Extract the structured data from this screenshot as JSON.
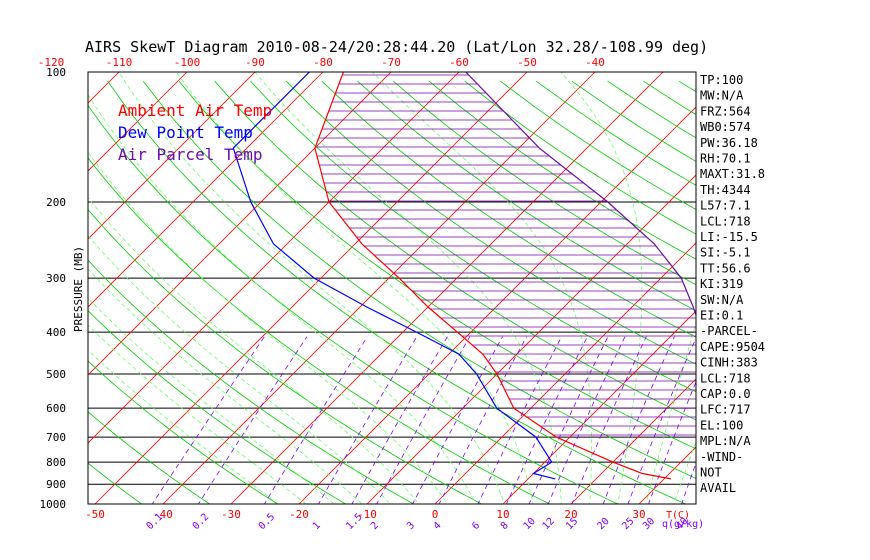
{
  "chart_data": {
    "type": "line",
    "title": "AIRS SkewT Diagram 2010-08-24/20:28:44.20 (Lat/Lon 32.28/-108.99 deg)",
    "ylabel": "PRESSURE (MB)",
    "xlabel": "T(C)",
    "mixing_unit": "q(g/kg)",
    "y_scale": "log",
    "ylim": [
      1000,
      100
    ],
    "xlim_bottom": [
      -50,
      30
    ],
    "y_ticks": [
      100,
      200,
      300,
      400,
      500,
      600,
      700,
      800,
      900,
      1000
    ],
    "x_ticks_bottom": [
      -50,
      -40,
      -30,
      -20,
      -10,
      0,
      10,
      20,
      30
    ],
    "x_ticks_top": [
      -120,
      -110,
      -100,
      -90,
      -80,
      -70,
      -60,
      -50,
      -40
    ],
    "mixing_ratio_labels": [
      "0.1",
      "0.2",
      "0.5",
      "1",
      "1.5",
      "2",
      "3",
      "4",
      "6",
      "8",
      "10",
      "12",
      "15",
      "20",
      "25",
      "30",
      "40"
    ],
    "legend": {
      "position": "top-left",
      "entries": [
        {
          "label": "Ambient Air Temp",
          "color": "#ff0000"
        },
        {
          "label": "Dew Point Temp",
          "color": "#0000ff"
        },
        {
          "label": "Air Parcel Temp",
          "color": "#6a0dad"
        }
      ]
    },
    "series": [
      {
        "name": "Ambient Air Temp",
        "color": "#ff0000",
        "pressure": [
          100,
          150,
          200,
          250,
          300,
          350,
          400,
          450,
          500,
          600,
          700,
          800,
          850,
          875
        ],
        "temp": [
          -77.0,
          -70.0,
          -60.0,
          -49.0,
          -38.5,
          -30.0,
          -22.0,
          -15.0,
          -10.0,
          -2.5,
          8.0,
          20.0,
          26.0,
          31.0
        ]
      },
      {
        "name": "Dew Point Temp",
        "color": "#0000ff",
        "pressure": [
          100,
          150,
          200,
          250,
          300,
          350,
          400,
          450,
          500,
          600,
          700,
          800,
          850,
          875
        ],
        "temp": [
          -82.0,
          -82.0,
          -71.5,
          -62.0,
          -51.0,
          -39.0,
          -28.0,
          -18.5,
          -13.0,
          -5.0,
          5.0,
          11.0,
          10.0,
          14.0
        ]
      },
      {
        "name": "Air Parcel Temp",
        "color": "#6a0dad",
        "pressure": [
          100,
          150,
          200,
          250,
          300,
          350,
          400,
          450,
          500,
          600,
          700,
          800,
          850
        ],
        "temp": [
          -59.0,
          -37.0,
          -19.0,
          -6.0,
          3.0,
          9.0,
          14.0,
          18.0,
          20.5,
          24.5,
          29.0,
          34.0,
          36.0
        ]
      }
    ]
  },
  "indices": [
    "TP:100",
    "MW:N/A",
    "FRZ:564",
    "WB0:574",
    "PW:36.18",
    "RH:70.1",
    "MAXT:31.8",
    "TH:4344",
    "L57:7.1",
    "LCL:718",
    "LI:-15.5",
    "SI:-5.1",
    "TT:56.6",
    "KI:319",
    "SW:N/A",
    "EI:0.1",
    "-PARCEL-",
    "CAPE:9504",
    "CINH:383",
    "LCL:718",
    "CAP:0.0",
    "LFC:717",
    "EL:100",
    "MPL:N/A",
    "-WIND-",
    "NOT",
    "AVAIL"
  ],
  "colors": {
    "isotherm": "#ff0000",
    "dry_adiabat": "#00cc00",
    "moist_adiabat": "#66ff66",
    "mixing_ratio": "#8000ff",
    "ambient": "#ff0000",
    "dewpoint": "#0000ff",
    "parcel": "#6a0dad",
    "hatch": "#7a00a8"
  }
}
